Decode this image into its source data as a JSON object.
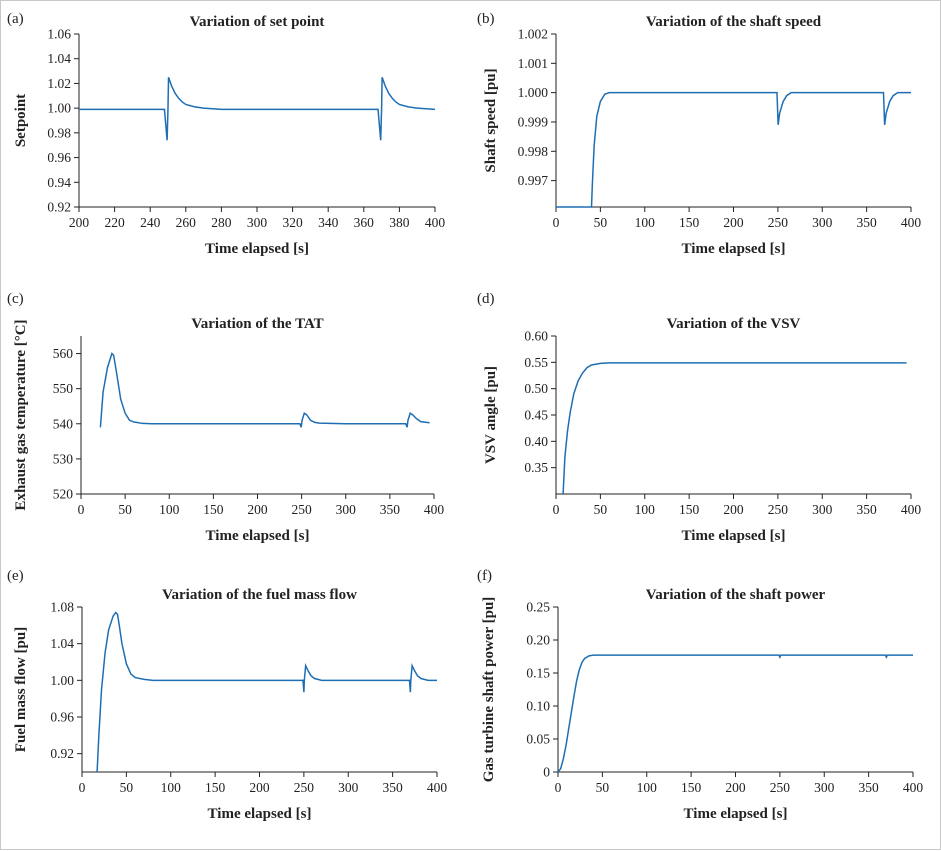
{
  "panels": [
    {
      "tag": "(a)",
      "chart_data": {
        "type": "line",
        "title": "Variation of set point",
        "xlabel": "Time elapsed [s]",
        "ylabel": "Setpoint",
        "xlim": [
          200,
          400
        ],
        "ylim": [
          0.92,
          1.06
        ],
        "xticks": [
          200,
          220,
          240,
          260,
          280,
          300,
          320,
          340,
          360,
          380,
          400
        ],
        "yticks": [
          0.92,
          0.94,
          0.96,
          0.98,
          1.0,
          1.02,
          1.04,
          1.06
        ],
        "ytick_labels": [
          "0.92",
          "0.94",
          "0.96",
          "0.98",
          "1.00",
          "1.02",
          "1.04",
          "1.06"
        ],
        "series": [
          {
            "x": [
              200,
              248,
              249.5,
              250,
              250.3,
              252,
              254,
              256,
              258,
              260,
              265,
              270,
              280,
              300,
              350,
              368,
              369.5,
              370,
              370.3,
              372,
              374,
              376,
              378,
              380,
              385,
              390,
              400
            ],
            "y": [
              0.999,
              0.999,
              0.974,
              1.0,
              1.025,
              1.018,
              1.012,
              1.008,
              1.005,
              1.003,
              1.001,
              1.0,
              0.999,
              0.999,
              0.999,
              0.999,
              0.974,
              1.0,
              1.025,
              1.018,
              1.012,
              1.008,
              1.005,
              1.003,
              1.001,
              1.0,
              0.999
            ]
          }
        ]
      }
    },
    {
      "tag": "(b)",
      "chart_data": {
        "type": "line",
        "title": "Variation of the shaft speed",
        "xlabel": "Time elapsed [s]",
        "ylabel": "Shaft speed [pu]",
        "xlim": [
          0,
          400
        ],
        "ylim": [
          0.9961,
          1.002
        ],
        "xticks": [
          0,
          50,
          100,
          150,
          200,
          250,
          300,
          350,
          400
        ],
        "yticks": [
          0.997,
          0.998,
          0.999,
          1.0,
          1.001,
          1.002
        ],
        "ytick_labels": [
          "0.997",
          "0.998",
          "0.999",
          "1.000",
          "1.001",
          "1.002"
        ],
        "series": [
          {
            "x": [
              0,
              40,
              41,
              43,
              46,
              50,
              55,
              60,
              65,
              70,
              80,
              100,
              249,
              250.3,
              252,
              256,
              260,
              265,
              270,
              369,
              370.3,
              372,
              376,
              380,
              385,
              400
            ],
            "y": [
              0.9961,
              0.9961,
              0.9969,
              0.9982,
              0.9992,
              0.9997,
              0.99995,
              1.0,
              1.0,
              1.0,
              1.0,
              1.0,
              1.0,
              0.9989,
              0.9993,
              0.9997,
              0.9999,
              1.0,
              1.0,
              1.0,
              0.9989,
              0.9993,
              0.9997,
              0.9999,
              1.0,
              1.0
            ]
          }
        ]
      }
    },
    {
      "tag": "(c)",
      "chart_data": {
        "type": "line",
        "title": "Variation of the TAT",
        "xlabel": "Time elapsed [s]",
        "ylabel": "Exhaust gas temperature [°C]",
        "xlim": [
          0,
          400
        ],
        "ylim": [
          520,
          565
        ],
        "xticks": [
          0,
          50,
          100,
          150,
          200,
          250,
          300,
          350,
          400
        ],
        "yticks": [
          520,
          530,
          540,
          550,
          560
        ],
        "ytick_labels": [
          "520",
          "530",
          "540",
          "550",
          "560"
        ],
        "series": [
          {
            "x": [
              22,
              25,
              30,
              35,
              37,
              40,
              45,
              50,
              55,
              60,
              70,
              80,
              100,
              200,
              248,
              249.5,
              250.5,
              253,
              256,
              260,
              265,
              270,
              300,
              368,
              369.5,
              370.5,
              373,
              376,
              380,
              385,
              395
            ],
            "y": [
              539,
              549,
              556,
              560,
              559.5,
              555,
              547,
              543,
              541,
              540.5,
              540.1,
              540,
              540,
              540,
              540,
              539,
              541,
              543,
              542.5,
              541,
              540.4,
              540.2,
              540,
              540,
              539,
              541,
              543,
              542.5,
              541.5,
              540.6,
              540.3
            ]
          }
        ]
      }
    },
    {
      "tag": "(d)",
      "chart_data": {
        "type": "line",
        "title": "Variation of the VSV",
        "xlabel": "Time elapsed [s]",
        "ylabel": "VSV angle [pu]",
        "xlim": [
          0,
          400
        ],
        "ylim": [
          0.3,
          0.6
        ],
        "xticks": [
          0,
          50,
          100,
          150,
          200,
          250,
          300,
          350,
          400
        ],
        "yticks": [
          0.35,
          0.4,
          0.45,
          0.5,
          0.55,
          0.6
        ],
        "ytick_labels": [
          "0.35",
          "0.40",
          "0.45",
          "0.50",
          "0.55",
          "0.60"
        ],
        "series": [
          {
            "x": [
              8,
              10,
              13,
              16,
              20,
              25,
              30,
              35,
              40,
              50,
              60,
              75,
              100,
              200,
              300,
              395
            ],
            "y": [
              0.3,
              0.37,
              0.42,
              0.455,
              0.49,
              0.515,
              0.53,
              0.54,
              0.545,
              0.548,
              0.549,
              0.549,
              0.549,
              0.549,
              0.549,
              0.549
            ]
          }
        ]
      }
    },
    {
      "tag": "(e)",
      "chart_data": {
        "type": "line",
        "title": "Variation of the fuel mass flow",
        "xlabel": "Time elapsed [s]",
        "ylabel": "Fuel mass flow [pu]",
        "xlim": [
          0,
          400
        ],
        "ylim": [
          0.9,
          1.08
        ],
        "xticks": [
          0,
          50,
          100,
          150,
          200,
          250,
          300,
          350,
          400
        ],
        "yticks": [
          0.92,
          0.96,
          1.0,
          1.04,
          1.08
        ],
        "ytick_labels": [
          "0.92",
          "0.96",
          "1.00",
          "1.04",
          "1.08"
        ],
        "series": [
          {
            "x": [
              17,
              19,
              22,
              26,
              30,
              35,
              38,
              40,
              42,
              45,
              50,
              55,
              60,
              70,
              80,
              100,
              200,
              249,
              250,
              250.5,
              252,
              255,
              258,
              262,
              270,
              300,
              369,
              370,
              370.5,
              372,
              375,
              378,
              382,
              390,
              400
            ],
            "y": [
              0.9,
              0.94,
              0.99,
              1.03,
              1.055,
              1.07,
              1.074,
              1.072,
              1.06,
              1.04,
              1.018,
              1.007,
              1.003,
              1.001,
              1.0,
              1.0,
              1.0,
              1.0,
              0.987,
              1.0,
              1.016,
              1.01,
              1.005,
              1.002,
              1.0,
              1.0,
              1.0,
              0.987,
              1.0,
              1.016,
              1.01,
              1.005,
              1.002,
              1.0,
              1.0
            ]
          }
        ]
      }
    },
    {
      "tag": "(f)",
      "chart_data": {
        "type": "line",
        "title": "Variation of the shaft power",
        "xlabel": "Time elapsed [s]",
        "ylabel": "Gas turbine shaft power [pu]",
        "xlim": [
          0,
          400
        ],
        "ylim": [
          0,
          0.25
        ],
        "xticks": [
          0,
          50,
          100,
          150,
          200,
          250,
          300,
          350,
          400
        ],
        "yticks": [
          0,
          0.05,
          0.1,
          0.15,
          0.2,
          0.25
        ],
        "ytick_labels": [
          "0",
          "0.05",
          "0.10",
          "0.15",
          "0.20",
          "0.25"
        ],
        "series": [
          {
            "x": [
              0,
              3,
              6,
              9,
              12,
              15,
              18,
              21,
              24,
              27,
              30,
              35,
              40,
              50,
              60,
              100,
              200,
              249,
              250,
              251,
              300,
              369,
              370,
              371,
              400
            ],
            "y": [
              0.0,
              0.005,
              0.02,
              0.04,
              0.065,
              0.09,
              0.115,
              0.138,
              0.155,
              0.166,
              0.172,
              0.176,
              0.177,
              0.177,
              0.177,
              0.177,
              0.177,
              0.177,
              0.174,
              0.177,
              0.177,
              0.177,
              0.174,
              0.177,
              0.177
            ]
          }
        ]
      }
    }
  ]
}
